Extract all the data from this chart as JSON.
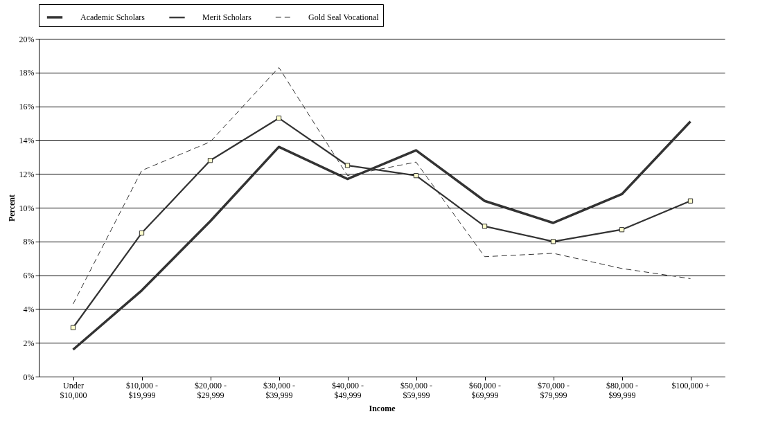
{
  "chart_data": {
    "type": "line",
    "xlabel": "Income",
    "ylabel": "Percent",
    "categories": [
      "Under $10,000",
      "$10,000 - $19,999",
      "$20,000 - $29,999",
      "$30,000 - $39,999",
      "$40,000 - $49,999",
      "$50,000 - $59,999",
      "$60,000 - $69,999",
      "$70,000 - $79,999",
      "$80,000 - $99,999",
      "$100,000 +"
    ],
    "series": [
      {
        "name": "Academic Scholars",
        "color": "#333333",
        "line_style": "solid",
        "marker": "none",
        "values": [
          1.6,
          5.1,
          9.2,
          13.6,
          11.7,
          13.4,
          10.4,
          9.1,
          10.8,
          15.1
        ]
      },
      {
        "name": "Merit Scholars",
        "color": "#333333",
        "line_style": "solid",
        "marker": "square",
        "values": [
          2.9,
          8.5,
          12.8,
          15.3,
          12.5,
          11.9,
          8.9,
          8.0,
          8.7,
          10.4
        ]
      },
      {
        "name": "Gold Seal Vocational",
        "color": "#333333",
        "line_style": "dashed",
        "marker": "none",
        "values": [
          4.3,
          12.2,
          13.9,
          18.3,
          11.9,
          12.7,
          7.1,
          7.3,
          6.4,
          5.8
        ]
      }
    ],
    "ylim": [
      0,
      20
    ],
    "yticks": [
      {
        "value": 0,
        "label": "0%"
      },
      {
        "value": 2,
        "label": "2%"
      },
      {
        "value": 4,
        "label": "4%"
      },
      {
        "value": 6,
        "label": "6%"
      },
      {
        "value": 8,
        "label": "8%"
      },
      {
        "value": 10,
        "label": "10%"
      },
      {
        "value": 12,
        "label": "12%"
      },
      {
        "value": 14,
        "label": "14%"
      },
      {
        "value": 16,
        "label": "16%"
      },
      {
        "value": 18,
        "label": "18%"
      },
      {
        "value": 20,
        "label": "20%"
      }
    ],
    "grid": "y",
    "legend": "top"
  }
}
